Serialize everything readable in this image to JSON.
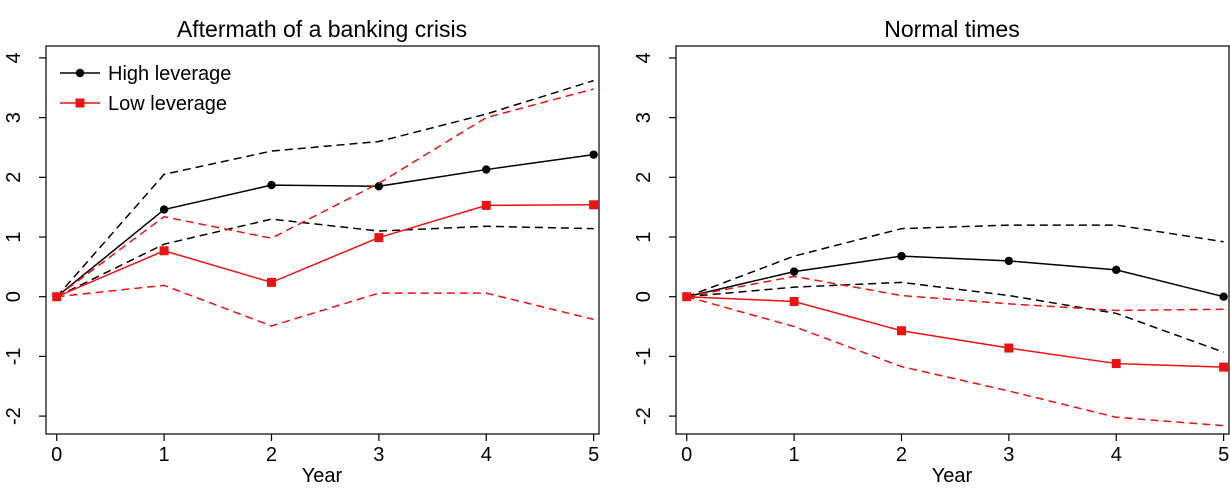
{
  "colors": {
    "high": "#000000",
    "low": "#ee1111",
    "frame": "#000000",
    "background": "#ffffff"
  },
  "legend": {
    "high_label": "High leverage",
    "low_label": "Low leverage"
  },
  "chart_data": [
    {
      "type": "line",
      "title": "Aftermath of a banking crisis",
      "xlabel": "Year",
      "ylabel": "",
      "x": [
        0,
        1,
        2,
        3,
        4,
        5
      ],
      "xlim": [
        -0.1,
        5.05
      ],
      "ylim": [
        -2.3,
        4.2
      ],
      "xticks": [
        "0",
        "1",
        "2",
        "3",
        "4",
        "5"
      ],
      "yticks": [
        "-2",
        "-1",
        "0",
        "1",
        "2",
        "3",
        "4"
      ],
      "legend_position": "top-left",
      "grid": false,
      "series": [
        {
          "name": "High leverage",
          "color": "#000000",
          "marker": "circle",
          "values": [
            0,
            1.46,
            1.87,
            1.85,
            2.13,
            2.38
          ],
          "upper": [
            0,
            2.05,
            2.44,
            2.6,
            3.06,
            3.62
          ],
          "lower": [
            0,
            0.88,
            1.3,
            1.1,
            1.18,
            1.14
          ]
        },
        {
          "name": "Low leverage",
          "color": "#ee1111",
          "marker": "square",
          "values": [
            0,
            0.77,
            0.24,
            0.99,
            1.53,
            1.54
          ],
          "upper": [
            0,
            1.34,
            0.98,
            1.9,
            3.0,
            3.48
          ],
          "lower": [
            0,
            0.19,
            -0.49,
            0.06,
            0.06,
            -0.38
          ]
        }
      ]
    },
    {
      "type": "line",
      "title": "Normal times",
      "xlabel": "Year",
      "ylabel": "",
      "x": [
        0,
        1,
        2,
        3,
        4,
        5
      ],
      "xlim": [
        -0.1,
        5.05
      ],
      "ylim": [
        -2.3,
        4.2
      ],
      "xticks": [
        "0",
        "1",
        "2",
        "3",
        "4",
        "5"
      ],
      "yticks": [
        "-2",
        "-1",
        "0",
        "1",
        "2",
        "3",
        "4"
      ],
      "grid": false,
      "series": [
        {
          "name": "High leverage",
          "color": "#000000",
          "marker": "circle",
          "values": [
            0,
            0.42,
            0.68,
            0.6,
            0.45,
            0.0
          ],
          "upper": [
            0,
            0.68,
            1.14,
            1.2,
            1.2,
            0.92
          ],
          "lower": [
            0,
            0.16,
            0.24,
            0.02,
            -0.28,
            -0.93
          ]
        },
        {
          "name": "Low leverage",
          "color": "#ee1111",
          "marker": "square",
          "values": [
            0,
            -0.08,
            -0.57,
            -0.86,
            -1.12,
            -1.18
          ],
          "upper": [
            0,
            0.34,
            0.02,
            -0.12,
            -0.23,
            -0.21
          ],
          "lower": [
            0,
            -0.5,
            -1.17,
            -1.58,
            -2.02,
            -2.16
          ]
        }
      ]
    }
  ]
}
